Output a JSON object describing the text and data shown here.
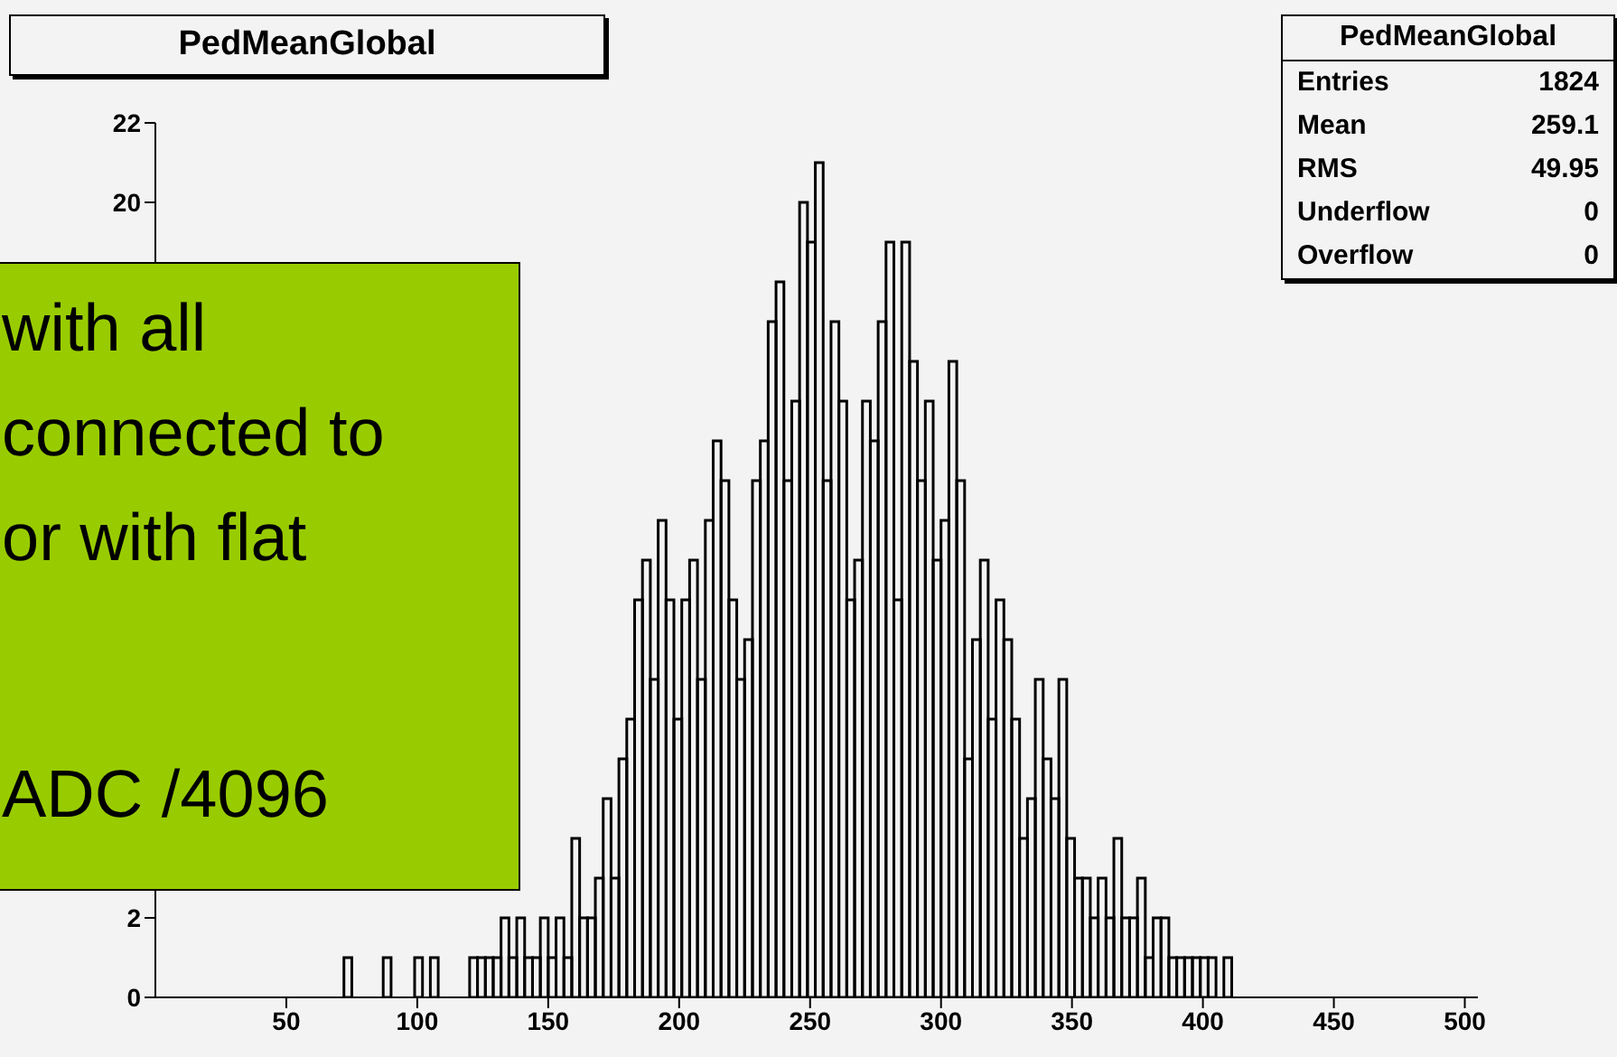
{
  "chart_data": {
    "type": "histogram",
    "title": "PedMeanGlobal",
    "bins": [
      72,
      75,
      87,
      90,
      99,
      102,
      105,
      108,
      120,
      123,
      126,
      129,
      132,
      135,
      138,
      141,
      144,
      147,
      150,
      153,
      156,
      159,
      162,
      165,
      168,
      171,
      174,
      177,
      180,
      183,
      186,
      189,
      192,
      195,
      198,
      201,
      204,
      207,
      210,
      213,
      216,
      219,
      222,
      225,
      228,
      231,
      234,
      237,
      240,
      243,
      246,
      249,
      252,
      255,
      258,
      261,
      264,
      267,
      270,
      273,
      276,
      279,
      282,
      285,
      288,
      291,
      294,
      297,
      300,
      303,
      306,
      309,
      312,
      315,
      318,
      321,
      324,
      327,
      330,
      333,
      336,
      339,
      342,
      345,
      348,
      351,
      354,
      357,
      360,
      363,
      366,
      369,
      372,
      375,
      378,
      381,
      384,
      387,
      390,
      393,
      396,
      399,
      402,
      405,
      408,
      411
    ],
    "values": [
      1,
      0,
      1,
      0,
      1,
      0,
      1,
      0,
      1,
      1,
      1,
      1,
      2,
      1,
      2,
      1,
      1,
      2,
      1,
      2,
      1,
      4,
      2,
      2,
      3,
      5,
      3,
      6,
      7,
      10,
      11,
      8,
      12,
      10,
      7,
      10,
      11,
      8,
      12,
      14,
      13,
      10,
      8,
      9,
      13,
      14,
      17,
      18,
      13,
      15,
      20,
      19,
      21,
      13,
      17,
      15,
      10,
      11,
      15,
      14,
      17,
      19,
      10,
      19,
      16,
      13,
      15,
      11,
      12,
      16,
      13,
      6,
      9,
      11,
      7,
      10,
      9,
      7,
      4,
      5,
      8,
      6,
      5,
      8,
      4,
      3,
      3,
      2,
      3,
      2,
      4,
      2,
      2,
      3,
      1,
      2,
      2,
      1,
      1,
      1,
      1,
      1,
      1,
      0,
      1
    ],
    "color": "#000000",
    "xlim": [
      0,
      505
    ],
    "xticks": [
      50,
      100,
      150,
      200,
      250,
      300,
      350,
      400,
      450,
      500
    ],
    "ylim": [
      0,
      22
    ],
    "yticks": [
      0,
      2,
      20,
      22
    ],
    "annotations": [
      "PedMeanGlobal",
      "Entries",
      "1824",
      "Mean",
      "259.1",
      "RMS",
      "49.95",
      "Underflow",
      "0",
      "Overflow",
      "0",
      "with all",
      "connected to",
      "or with flat",
      "ADC /4096"
    ]
  }
}
